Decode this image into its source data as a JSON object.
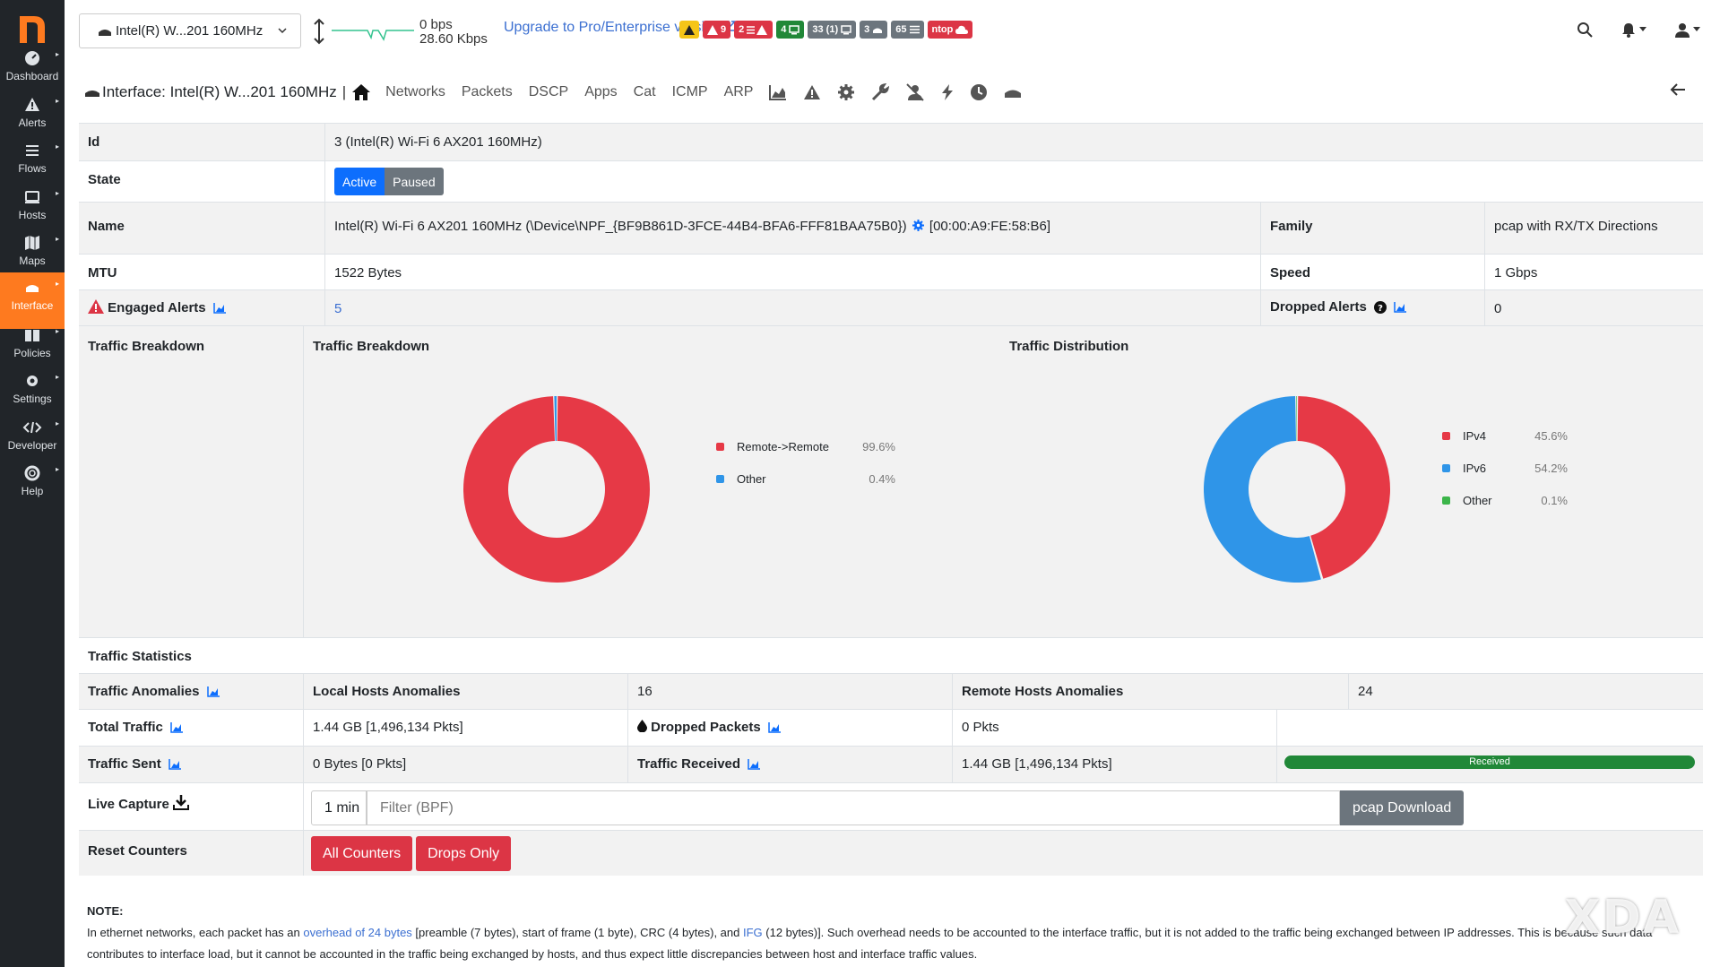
{
  "sidebar": {
    "items": [
      {
        "label": "Dashboard",
        "icon": "dashboard-icon"
      },
      {
        "label": "Alerts",
        "icon": "alert-icon"
      },
      {
        "label": "Flows",
        "icon": "flows-icon"
      },
      {
        "label": "Hosts",
        "icon": "hosts-icon"
      },
      {
        "label": "Maps",
        "icon": "maps-icon"
      },
      {
        "label": "Interface",
        "icon": "interface-icon",
        "active": true
      },
      {
        "label": "Policies",
        "icon": "policies-icon"
      },
      {
        "label": "Settings",
        "icon": "settings-icon"
      },
      {
        "label": "Developer",
        "icon": "developer-icon"
      },
      {
        "label": "Help",
        "icon": "help-icon"
      }
    ]
  },
  "topbar": {
    "interface_select": "Intel(R) W...201 160MHz",
    "bps_up": "0 bps",
    "bps_down": "28.60 Kbps",
    "upgrade": "Upgrade to Pro/Enterprise version",
    "badges": [
      {
        "text": "",
        "color": "warn",
        "icon": "warning-icon"
      },
      {
        "text": "9",
        "color": "red",
        "icon": "warning-icon"
      },
      {
        "text": "2",
        "color": "red",
        "icon": "list-warning-icon"
      },
      {
        "text": "4",
        "color": "green",
        "icon": "monitor-icon"
      },
      {
        "text": "33 (1)",
        "color": "gray",
        "icon": "monitor-icon"
      },
      {
        "text": "3",
        "color": "gray",
        "icon": "cloud-icon"
      },
      {
        "text": "65",
        "color": "gray",
        "icon": "list-icon"
      },
      {
        "text": "ntop",
        "color": "red",
        "icon": "cloud-icon"
      }
    ]
  },
  "ifnav": {
    "title": "Interface: Intel(R) W...201 160MHz",
    "sep": "|",
    "links": [
      "Networks",
      "Packets",
      "DSCP",
      "Apps",
      "Cat",
      "ICMP",
      "ARP"
    ]
  },
  "details": {
    "id_label": "Id",
    "id_value": "3 (Intel(R) Wi-Fi 6 AX201 160MHz)",
    "state_label": "State",
    "state_active": "Active",
    "state_paused": "Paused",
    "name_label": "Name",
    "name_value": "Intel(R) Wi-Fi 6 AX201 160MHz (\\Device\\NPF_{BF9B861D-3FCE-44B4-BFA6-FFF81BAA75B0})",
    "name_mac": "[00:00:A9:FE:58:B6]",
    "family_label": "Family",
    "family_value": "pcap with RX/TX Directions",
    "mtu_label": "MTU",
    "mtu_value": "1522 Bytes",
    "speed_label": "Speed",
    "speed_value": "1 Gbps",
    "engaged_label": "Engaged Alerts",
    "engaged_value": "5",
    "dropped_alerts_label": "Dropped Alerts",
    "dropped_alerts_value": "0"
  },
  "breakdown": {
    "row_label": "Traffic Breakdown",
    "chart1_title": "Traffic Breakdown",
    "chart2_title": "Traffic Distribution"
  },
  "chart_data": [
    {
      "type": "pie",
      "title": "Traffic Breakdown",
      "categories": [
        "Remote->Remote",
        "Other"
      ],
      "values": [
        99.6,
        0.4
      ],
      "labels": [
        "99.6%",
        "0.4%"
      ],
      "colors": [
        "#e63946",
        "#2f95e8"
      ],
      "legend": "right"
    },
    {
      "type": "pie",
      "title": "Traffic Distribution",
      "categories": [
        "IPv4",
        "IPv6",
        "Other"
      ],
      "values": [
        45.6,
        54.2,
        0.1
      ],
      "labels": [
        "45.6%",
        "54.2%",
        "0.1%"
      ],
      "colors": [
        "#e63946",
        "#2f95e8",
        "#3cb54a"
      ],
      "legend": "right"
    }
  ],
  "stats": {
    "title": "Traffic Statistics",
    "anomalies_label": "Traffic Anomalies",
    "local_label": "Local Hosts Anomalies",
    "local_value": "16",
    "remote_label": "Remote Hosts Anomalies",
    "remote_value": "24",
    "total_label": "Total Traffic",
    "total_value": "1.44 GB [1,496,134 Pkts]",
    "dropped_label": "Dropped Packets",
    "dropped_value": "0 Pkts",
    "sent_label": "Traffic Sent",
    "sent_value": "0 Bytes [0 Pkts]",
    "received_label": "Traffic Received",
    "received_value": "1.44 GB [1,496,134 Pkts]",
    "received_bar": "Received",
    "received_fraction": 1.0
  },
  "capture": {
    "label": "Live Capture",
    "duration": "1 min",
    "filter_placeholder": "Filter (BPF)",
    "download": "pcap Download"
  },
  "reset": {
    "label": "Reset Counters",
    "all": "All Counters",
    "drops": "Drops Only"
  },
  "note": {
    "title": "NOTE:",
    "text1": "In ethernet networks, each packet has an ",
    "link1": "overhead of 24 bytes",
    "text2": " [preamble (7 bytes), start of frame (1 byte), CRC (4 bytes), and ",
    "link2": "IFG",
    "text3": " (12 bytes)]. Such overhead needs to be accounted to the interface traffic, but it is not added to the traffic being exchanged between IP addresses. This is because such data contributes to interface load, but it cannot be accounted in the traffic being exchanged by hosts, and thus expect little discrepancies between host and interface traffic values."
  },
  "watermark": "XDA"
}
